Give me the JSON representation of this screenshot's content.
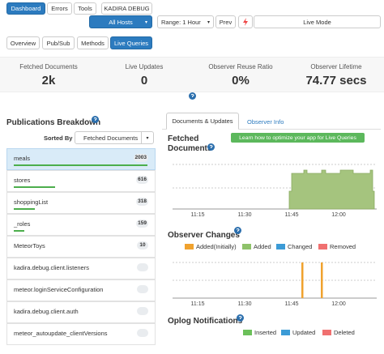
{
  "nav": {
    "tabs": [
      "Dashboard",
      "Errors",
      "Tools"
    ],
    "app": "KADIRA DEBUG"
  },
  "toolbar": {
    "hosts": "All Hosts",
    "range": "Range: 1 Hour",
    "prev": "Prev",
    "mode": "Live Mode"
  },
  "section_tabs": [
    "Overview",
    "Pub/Sub",
    "Methods",
    "Live Queries"
  ],
  "stats": [
    {
      "label": "Fetched Documents",
      "value": "2k"
    },
    {
      "label": "Live Updates",
      "value": "0"
    },
    {
      "label": "Observer Reuse Ratio",
      "value": "0%"
    },
    {
      "label": "Observer Lifetime",
      "value": "74.77 secs"
    }
  ],
  "publications": {
    "title": "Publications Breakdown",
    "sorted_by": "Sorted By",
    "sort_option": "Fetched Documents",
    "items": [
      {
        "name": "meals",
        "value": 2003
      },
      {
        "name": "stores",
        "value": 616
      },
      {
        "name": "shoppingList",
        "value": 318
      },
      {
        "name": "_roles",
        "value": 159
      },
      {
        "name": "MeteorToys",
        "value": 10
      },
      {
        "name": "kadira.debug.client.listeners"
      },
      {
        "name": "meteor.loginServiceConfiguration"
      },
      {
        "name": "kadira.debug.client.auth"
      },
      {
        "name": "meteor_autoupdate_clientVersions"
      }
    ]
  },
  "detail": {
    "tabs": [
      "Documents & Updates",
      "Observer Info"
    ],
    "cta": "Learn how to optimize your app for Live Queries",
    "fetched": {
      "title": "Fetched Documents",
      "xticks": [
        "11:15",
        "11:30",
        "11:45",
        "12:00"
      ]
    },
    "observer": {
      "title": "Observer Changes",
      "legend": [
        {
          "name": "Added(Initially)",
          "color": "#f0a22e"
        },
        {
          "name": "Added",
          "color": "#8ec26a"
        },
        {
          "name": "Changed",
          "color": "#3c9bd6"
        },
        {
          "name": "Removed",
          "color": "#f07070"
        }
      ],
      "xticks": [
        "11:15",
        "11:30",
        "11:45",
        "12:00"
      ]
    },
    "oplog": {
      "title": "Oplog Notifications",
      "legend": [
        {
          "name": "Inserted",
          "color": "#6cc05a"
        },
        {
          "name": "Updated",
          "color": "#3c9bd6"
        },
        {
          "name": "Deleted",
          "color": "#f07070"
        }
      ]
    }
  }
}
